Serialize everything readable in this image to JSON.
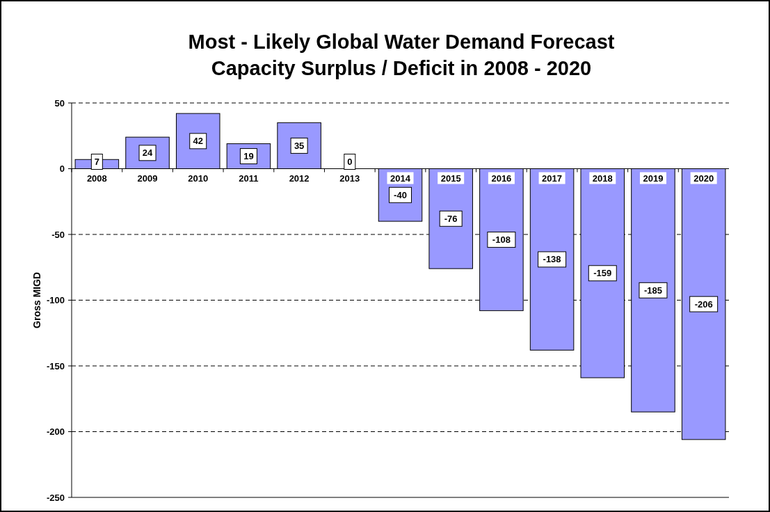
{
  "chart_data": {
    "type": "bar",
    "title": "Most - Likely Global Water Demand Forecast\nCapacity Surplus / Deficit in 2008 - 2020",
    "ylabel": "Gross MIGD",
    "categories": [
      "2008",
      "2009",
      "2010",
      "2011",
      "2012",
      "2013",
      "2014",
      "2015",
      "2016",
      "2017",
      "2018",
      "2019",
      "2020"
    ],
    "values": [
      7,
      24,
      42,
      19,
      35,
      0,
      -40,
      -76,
      -108,
      -138,
      -159,
      -185,
      -206
    ],
    "color": "#9999ff",
    "ylim": [
      -250,
      50
    ],
    "yticks": [
      -250,
      -200,
      -150,
      -100,
      -50,
      0,
      50
    ],
    "grid": "y",
    "data_labels": true
  }
}
